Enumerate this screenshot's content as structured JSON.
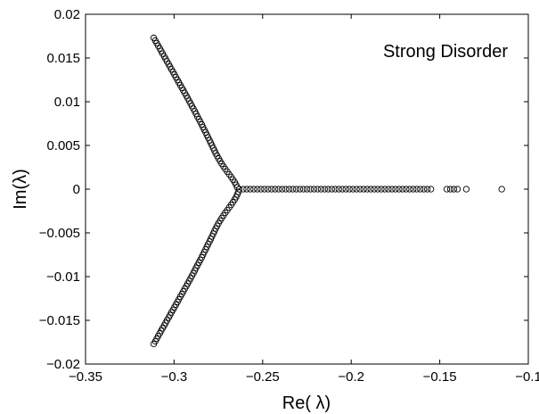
{
  "chart_data": {
    "type": "scatter",
    "title": "",
    "annotation": "Strong Disorder",
    "xlabel": "Re( λ)",
    "ylabel": "Im(λ)",
    "xlim": [
      -0.35,
      -0.1
    ],
    "ylim": [
      -0.02,
      0.02
    ],
    "xticks": [
      -0.35,
      -0.3,
      -0.25,
      -0.2,
      -0.15,
      -0.1
    ],
    "xtick_labels": [
      "−0.35",
      "−0.3",
      "−0.25",
      "−0.2",
      "−0.15",
      "−0.1"
    ],
    "yticks": [
      -0.02,
      -0.015,
      -0.01,
      -0.005,
      0,
      0.005,
      0.01,
      0.015,
      0.02
    ],
    "ytick_labels": [
      "−0.02",
      "−0.015",
      "−0.01",
      "−0.005",
      "0",
      "0.005",
      "0.01",
      "0.015",
      "0.02"
    ],
    "grid": false,
    "marker": "open-circle",
    "series": [
      {
        "points": [
          [
            -0.3115,
            0.0173
          ],
          [
            -0.3106,
            0.017
          ],
          [
            -0.3098,
            0.0167
          ],
          [
            -0.309,
            0.0164
          ],
          [
            -0.3081,
            0.0161
          ],
          [
            -0.3073,
            0.0158
          ],
          [
            -0.3065,
            0.0155
          ],
          [
            -0.3056,
            0.0152
          ],
          [
            -0.3048,
            0.0149
          ],
          [
            -0.304,
            0.0146
          ],
          [
            -0.3031,
            0.0143
          ],
          [
            -0.3023,
            0.014
          ],
          [
            -0.3015,
            0.0137
          ],
          [
            -0.3006,
            0.0134
          ],
          [
            -0.2998,
            0.0131
          ],
          [
            -0.299,
            0.0128
          ],
          [
            -0.2981,
            0.0125
          ],
          [
            -0.2973,
            0.0122
          ],
          [
            -0.2965,
            0.0119
          ],
          [
            -0.2956,
            0.0116
          ],
          [
            -0.2948,
            0.0113
          ],
          [
            -0.294,
            0.011
          ],
          [
            -0.2931,
            0.0107
          ],
          [
            -0.2923,
            0.0104
          ],
          [
            -0.2915,
            0.0101
          ],
          [
            -0.2907,
            0.0098
          ],
          [
            -0.2899,
            0.0095
          ],
          [
            -0.2891,
            0.0092
          ],
          [
            -0.2883,
            0.0089
          ],
          [
            -0.2876,
            0.0086
          ],
          [
            -0.2868,
            0.0083
          ],
          [
            -0.286,
            0.008
          ],
          [
            -0.2852,
            0.0077
          ],
          [
            -0.2844,
            0.0074
          ],
          [
            -0.2837,
            0.0071
          ],
          [
            -0.283,
            0.0068
          ],
          [
            -0.2822,
            0.0065
          ],
          [
            -0.2815,
            0.0062
          ],
          [
            -0.2808,
            0.0059
          ],
          [
            -0.28,
            0.0056
          ],
          [
            -0.2793,
            0.0053
          ],
          [
            -0.2786,
            0.005
          ],
          [
            -0.2779,
            0.0047
          ],
          [
            -0.2772,
            0.0044
          ],
          [
            -0.2765,
            0.0041
          ],
          [
            -0.2757,
            0.0038
          ],
          [
            -0.2749,
            0.0035
          ],
          [
            -0.274,
            0.0032
          ],
          [
            -0.2731,
            0.0029
          ],
          [
            -0.2721,
            0.0026
          ],
          [
            -0.2711,
            0.0023
          ],
          [
            -0.27,
            0.002
          ],
          [
            -0.2689,
            0.0017
          ],
          [
            -0.2678,
            0.0014
          ],
          [
            -0.2668,
            0.0011
          ],
          [
            -0.2658,
            0.0008
          ],
          [
            -0.265,
            0.0005
          ],
          [
            -0.2643,
            0.0002
          ],
          [
            -0.3115,
            -0.0177
          ],
          [
            -0.3106,
            -0.0174
          ],
          [
            -0.3098,
            -0.0171
          ],
          [
            -0.309,
            -0.0168
          ],
          [
            -0.3081,
            -0.0165
          ],
          [
            -0.3073,
            -0.0162
          ],
          [
            -0.3065,
            -0.0159
          ],
          [
            -0.3056,
            -0.0156
          ],
          [
            -0.3048,
            -0.0153
          ],
          [
            -0.304,
            -0.015
          ],
          [
            -0.3031,
            -0.0147
          ],
          [
            -0.3023,
            -0.0144
          ],
          [
            -0.3015,
            -0.0141
          ],
          [
            -0.3006,
            -0.0138
          ],
          [
            -0.2998,
            -0.0135
          ],
          [
            -0.299,
            -0.0132
          ],
          [
            -0.2981,
            -0.0129
          ],
          [
            -0.2973,
            -0.0126
          ],
          [
            -0.2965,
            -0.0123
          ],
          [
            -0.2956,
            -0.012
          ],
          [
            -0.2948,
            -0.0117
          ],
          [
            -0.294,
            -0.0114
          ],
          [
            -0.2931,
            -0.0111
          ],
          [
            -0.2923,
            -0.0108
          ],
          [
            -0.2915,
            -0.0105
          ],
          [
            -0.2907,
            -0.0102
          ],
          [
            -0.2899,
            -0.0099
          ],
          [
            -0.2891,
            -0.0096
          ],
          [
            -0.2883,
            -0.0093
          ],
          [
            -0.2876,
            -0.009
          ],
          [
            -0.2868,
            -0.0087
          ],
          [
            -0.286,
            -0.0084
          ],
          [
            -0.2852,
            -0.0081
          ],
          [
            -0.2844,
            -0.0078
          ],
          [
            -0.2837,
            -0.0075
          ],
          [
            -0.283,
            -0.0072
          ],
          [
            -0.2822,
            -0.0069
          ],
          [
            -0.2815,
            -0.0066
          ],
          [
            -0.2808,
            -0.0063
          ],
          [
            -0.28,
            -0.006
          ],
          [
            -0.2793,
            -0.0057
          ],
          [
            -0.2786,
            -0.0054
          ],
          [
            -0.2779,
            -0.0051
          ],
          [
            -0.2772,
            -0.0048
          ],
          [
            -0.2765,
            -0.0045
          ],
          [
            -0.2757,
            -0.0042
          ],
          [
            -0.2749,
            -0.0039
          ],
          [
            -0.274,
            -0.0036
          ],
          [
            -0.2731,
            -0.0033
          ],
          [
            -0.2721,
            -0.003
          ],
          [
            -0.2711,
            -0.0027
          ],
          [
            -0.27,
            -0.0024
          ],
          [
            -0.2689,
            -0.0021
          ],
          [
            -0.2678,
            -0.0018
          ],
          [
            -0.2668,
            -0.0015
          ],
          [
            -0.2658,
            -0.0012
          ],
          [
            -0.265,
            -0.0009
          ],
          [
            -0.2643,
            -0.0006
          ],
          [
            -0.2637,
            -0.0003
          ],
          [
            -0.2632,
            0
          ],
          [
            -0.261,
            0
          ],
          [
            -0.259,
            0
          ],
          [
            -0.257,
            0
          ],
          [
            -0.255,
            0
          ],
          [
            -0.253,
            0
          ],
          [
            -0.251,
            0
          ],
          [
            -0.249,
            0
          ],
          [
            -0.247,
            0
          ],
          [
            -0.245,
            0
          ],
          [
            -0.243,
            0
          ],
          [
            -0.241,
            0
          ],
          [
            -0.239,
            0
          ],
          [
            -0.237,
            0
          ],
          [
            -0.235,
            0
          ],
          [
            -0.233,
            0
          ],
          [
            -0.231,
            0
          ],
          [
            -0.229,
            0
          ],
          [
            -0.227,
            0
          ],
          [
            -0.225,
            0
          ],
          [
            -0.223,
            0
          ],
          [
            -0.221,
            0
          ],
          [
            -0.219,
            0
          ],
          [
            -0.217,
            0
          ],
          [
            -0.215,
            0
          ],
          [
            -0.213,
            0
          ],
          [
            -0.211,
            0
          ],
          [
            -0.209,
            0
          ],
          [
            -0.207,
            0
          ],
          [
            -0.205,
            0
          ],
          [
            -0.203,
            0
          ],
          [
            -0.201,
            0
          ],
          [
            -0.199,
            0
          ],
          [
            -0.197,
            0
          ],
          [
            -0.195,
            0
          ],
          [
            -0.193,
            0
          ],
          [
            -0.191,
            0
          ],
          [
            -0.189,
            0
          ],
          [
            -0.187,
            0
          ],
          [
            -0.185,
            0
          ],
          [
            -0.183,
            0
          ],
          [
            -0.181,
            0
          ],
          [
            -0.179,
            0
          ],
          [
            -0.177,
            0
          ],
          [
            -0.175,
            0
          ],
          [
            -0.173,
            0
          ],
          [
            -0.171,
            0
          ],
          [
            -0.169,
            0
          ],
          [
            -0.167,
            0
          ],
          [
            -0.165,
            0
          ],
          [
            -0.163,
            0
          ],
          [
            -0.161,
            0
          ],
          [
            -0.159,
            0
          ],
          [
            -0.157,
            0
          ],
          [
            -0.155,
            0
          ],
          [
            -0.146,
            0
          ],
          [
            -0.144,
            0
          ],
          [
            -0.142,
            0
          ],
          [
            -0.14,
            0
          ],
          [
            -0.135,
            0
          ],
          [
            -0.115,
            0
          ]
        ]
      }
    ]
  }
}
